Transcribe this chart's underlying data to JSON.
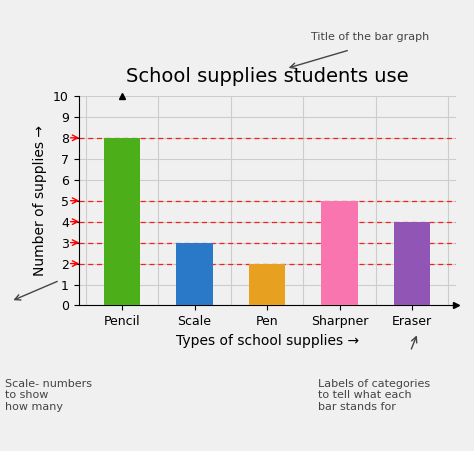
{
  "title": "School supplies students use",
  "xlabel": "Types of school supplies →",
  "ylabel": "Number of supplies →",
  "categories": [
    "Pencil",
    "Scale",
    "Pen",
    "Sharpner",
    "Eraser"
  ],
  "values": [
    8,
    3,
    2,
    5,
    4
  ],
  "bar_colors": [
    "#4caf1a",
    "#2979c8",
    "#e8a020",
    "#f875b0",
    "#9055b5"
  ],
  "ylim": [
    0,
    10
  ],
  "yticks": [
    0,
    1,
    2,
    3,
    4,
    5,
    6,
    7,
    8,
    9,
    10
  ],
  "red_dashed_y": [
    2,
    3,
    4,
    5,
    8
  ],
  "background_color": "#f0f0f0",
  "grid_color": "#cccccc",
  "annotation_title": "Title of the bar graph",
  "annotation_scale": "Scale- numbers\nto show\nhow many",
  "annotation_labels": "Labels of categories\nto tell what each\nbar stands for",
  "title_fontsize": 14,
  "axis_label_fontsize": 10,
  "tick_fontsize": 9,
  "annotation_fontsize": 8
}
